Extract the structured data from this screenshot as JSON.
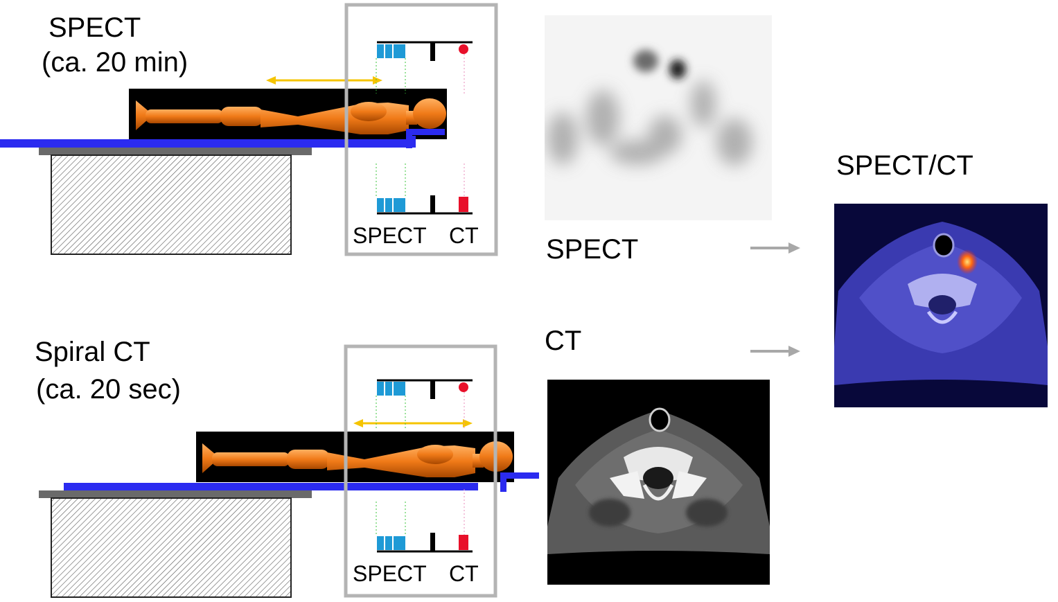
{
  "top_panel": {
    "mode": "SPECT",
    "duration": "(ca. 20 min)",
    "gantry_labels": {
      "spect": "SPECT",
      "ct": "CT"
    }
  },
  "bottom_panel": {
    "mode": "Spiral CT",
    "duration": "(ca. 20 sec)",
    "gantry_labels": {
      "spect": "SPECT",
      "ct": "CT"
    }
  },
  "images": {
    "spect_label": "SPECT",
    "ct_label": "CT",
    "fused_label": "SPECT/CT"
  },
  "colors": {
    "table_blue": "#2b2bf0",
    "arrow_gold": "#f5c400",
    "spect_detector": "#1e9ad6",
    "ct_source": "#e8102a",
    "gantry_frame": "#b4b4b4",
    "body_orange": "#f07a18"
  },
  "icons": {
    "flow_arrow": "right-arrow-icon"
  }
}
